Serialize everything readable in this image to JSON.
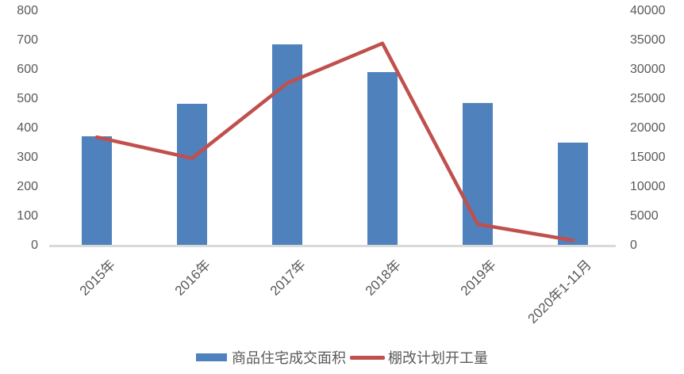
{
  "chart_data": {
    "type": "combo-bar-line",
    "categories": [
      "2015年",
      "2016年",
      "2017年",
      "2018年",
      "2019年",
      "2020年1-11月"
    ],
    "series": [
      {
        "name": "商品住宅成交面积",
        "type": "bar",
        "axis": "left",
        "color": "#4F81BD",
        "values": [
          374,
          484,
          686,
          592,
          486,
          351
        ]
      },
      {
        "name": "棚改计划开工量",
        "type": "line",
        "axis": "right",
        "color": "#C0504D",
        "values": [
          18500,
          14900,
          27700,
          34500,
          3650,
          900
        ]
      }
    ],
    "left_axis": {
      "min": 0,
      "max": 800,
      "step": 100,
      "tick_labels": [
        "0",
        "100",
        "200",
        "300",
        "400",
        "500",
        "600",
        "700",
        "800"
      ]
    },
    "right_axis": {
      "min": 0,
      "max": 40000,
      "step": 5000,
      "tick_labels": [
        "0",
        "5000",
        "10000",
        "15000",
        "20000",
        "25000",
        "30000",
        "35000",
        "40000"
      ]
    },
    "grid": false,
    "legend_position": "bottom",
    "x_label_rotation_deg": 45
  },
  "colors": {
    "bar": "#4F81BD",
    "line": "#C0504D",
    "axis_line": "#D9D9D9",
    "text": "#595959",
    "background": "#FFFFFF"
  }
}
